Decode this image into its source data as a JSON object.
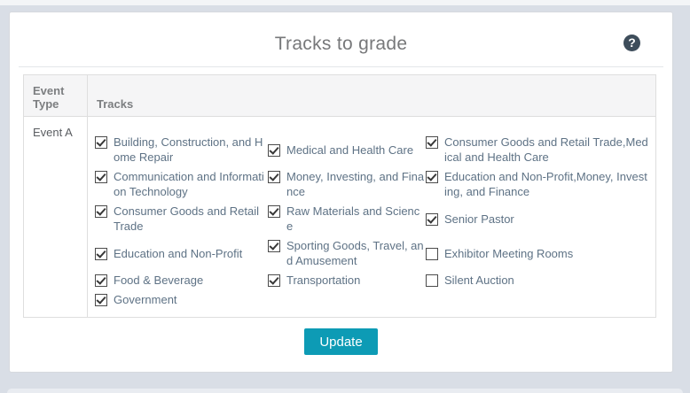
{
  "header": {
    "title": "Tracks to grade",
    "help_icon": "?"
  },
  "table": {
    "col_event_type": "Event Type",
    "col_tracks": "Tracks",
    "event_name": "Event A",
    "track_rows": [
      [
        {
          "label": "Building, Construction, and Home Repair",
          "checked": true
        },
        {
          "label": "Medical and Health Care",
          "checked": true
        },
        {
          "label": "Consumer Goods and Retail Trade,Medical and Health Care",
          "checked": true
        }
      ],
      [
        {
          "label": "Communication and Information Technology",
          "checked": true
        },
        {
          "label": "Money, Investing, and Finance",
          "checked": true
        },
        {
          "label": "Education and Non-Profit,Money, Investing, and Finance",
          "checked": true
        }
      ],
      [
        {
          "label": "Consumer Goods and Retail Trade",
          "checked": true
        },
        {
          "label": "Raw Materials and Science",
          "checked": true
        },
        {
          "label": "Senior Pastor",
          "checked": true
        }
      ],
      [
        {
          "label": "Education and Non-Profit",
          "checked": true
        },
        {
          "label": "Sporting Goods, Travel, and Amusement",
          "checked": true
        },
        {
          "label": "Exhibitor Meeting Rooms",
          "checked": false
        }
      ],
      [
        {
          "label": "Food & Beverage",
          "checked": true
        },
        {
          "label": "Transportation",
          "checked": true
        },
        {
          "label": "Silent Auction",
          "checked": false
        }
      ],
      [
        {
          "label": "Government",
          "checked": true
        },
        null,
        null
      ]
    ]
  },
  "footer": {
    "update_label": "Update"
  },
  "colors": {
    "accent_button": "#0d9bb5",
    "help_icon_bg": "#3e4d5b",
    "track_label": "#5e7285",
    "page_background": "#d9dee6",
    "header_row_background": "#f5f5f6"
  }
}
